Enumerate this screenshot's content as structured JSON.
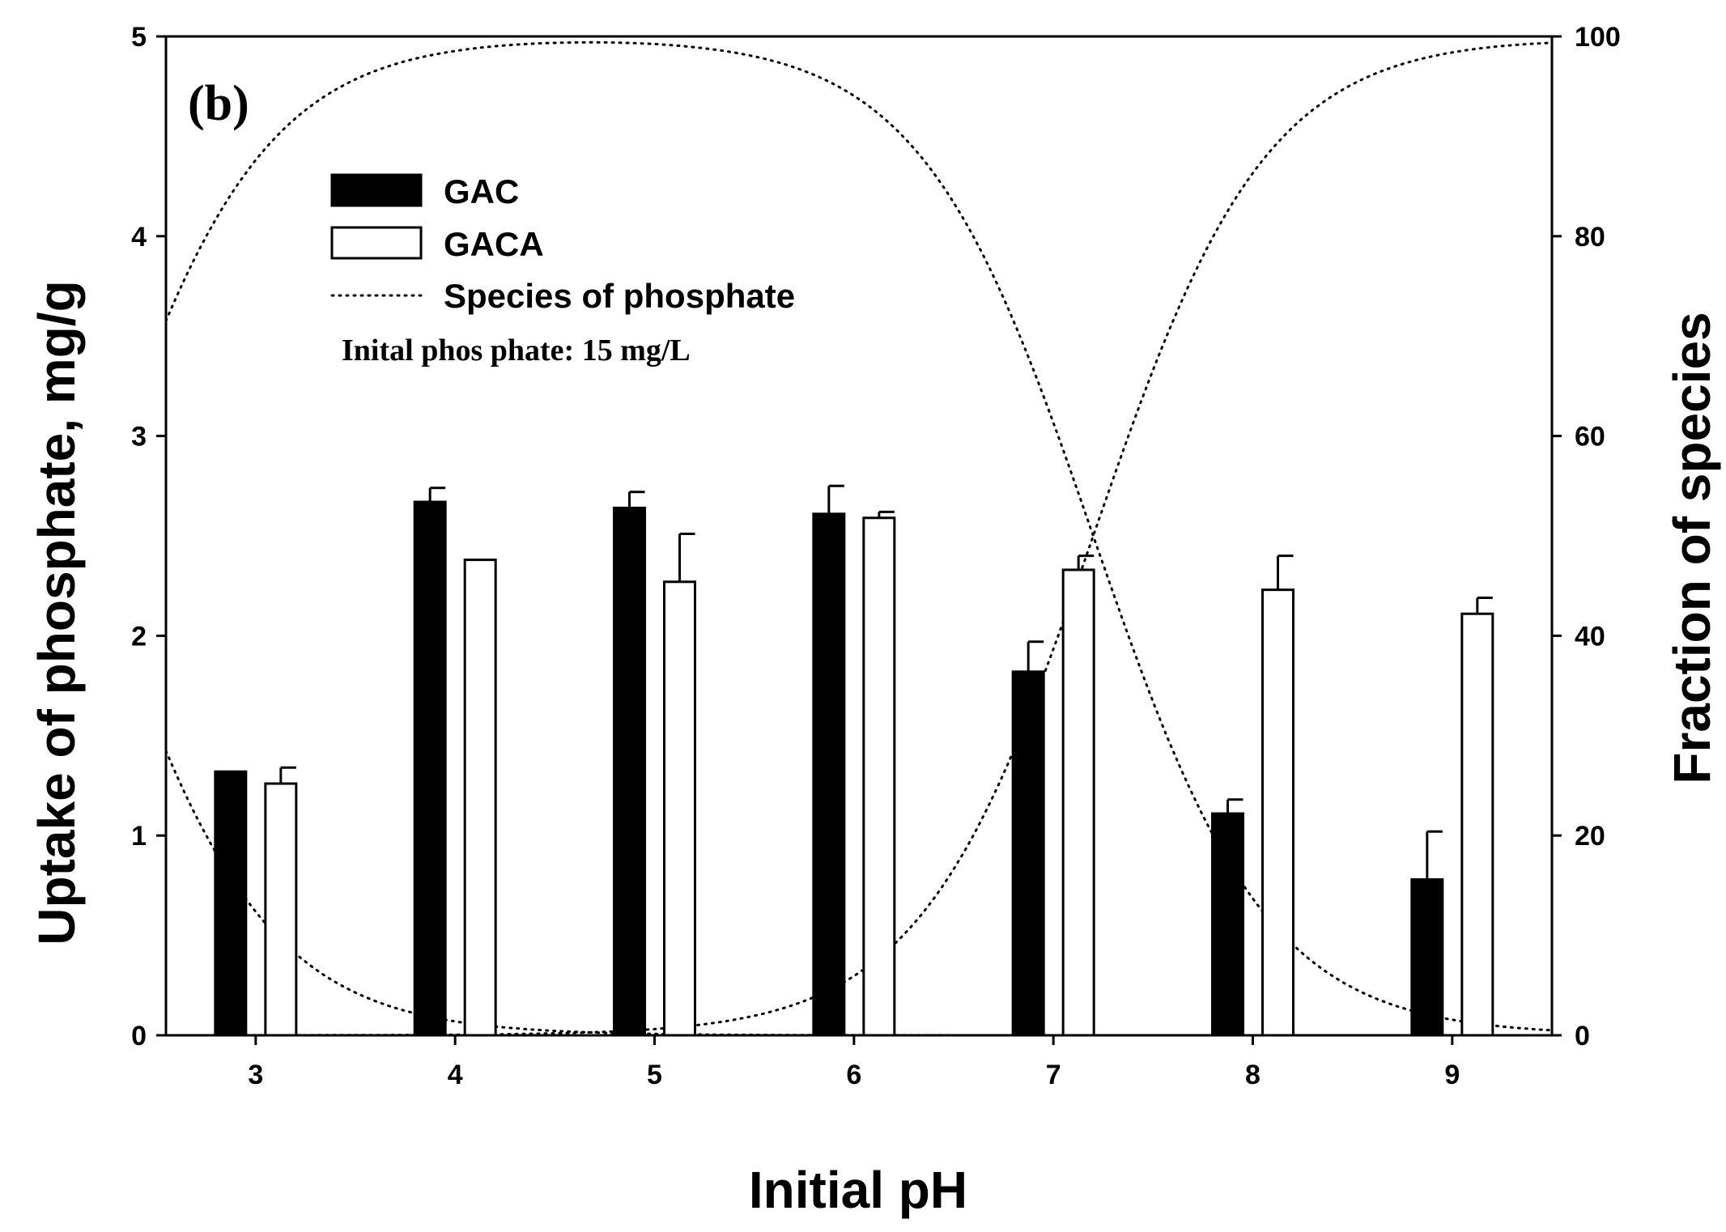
{
  "chart_data": {
    "type": "bar",
    "panel_label": "(b)",
    "categories": [
      "3",
      "4",
      "5",
      "6",
      "7",
      "8",
      "9"
    ],
    "x": [
      3,
      4,
      5,
      6,
      7,
      8,
      9
    ],
    "xlabel": "Initial pH",
    "ylabel": "Uptake of phosphate, mg/g",
    "ylabel_right": "Fraction of species",
    "xlim": [
      2.55,
      9.5
    ],
    "ylim": [
      0,
      5
    ],
    "ylim_right": [
      0,
      100
    ],
    "yticks": [
      0,
      1,
      2,
      3,
      4,
      5
    ],
    "yticks_right": [
      0,
      20,
      40,
      60,
      80,
      100
    ],
    "series": [
      {
        "name": "GAC",
        "fill": "#000000",
        "values": [
          1.32,
          2.67,
          2.64,
          2.61,
          1.82,
          1.11,
          0.78
        ],
        "errors": [
          0.0,
          0.07,
          0.08,
          0.14,
          0.15,
          0.07,
          0.24
        ]
      },
      {
        "name": "GACA",
        "fill": "#ffffff",
        "values": [
          1.26,
          2.38,
          2.27,
          2.59,
          2.33,
          2.23,
          2.11
        ],
        "errors": [
          0.08,
          0.0,
          0.24,
          0.03,
          0.07,
          0.17,
          0.08
        ]
      }
    ],
    "species_curves": {
      "name": "Species of phosphate",
      "style": "dotted",
      "pKa": [
        2.15,
        7.2,
        12.35
      ]
    },
    "legend": {
      "position": "top-left",
      "entries": [
        "GAC",
        "GACA",
        "Species of phosphate"
      ]
    },
    "annotation": "Inital phos phate: 15 mg/L"
  }
}
